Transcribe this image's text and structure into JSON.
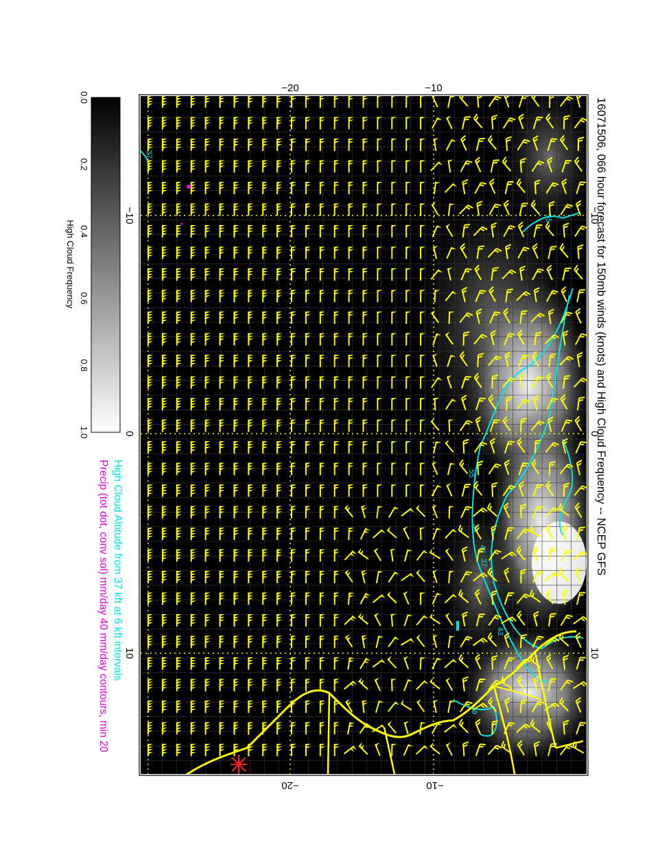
{
  "title": "16071506, 066 hour forecast for 150mb winds (knots) and High Cloud Frequency -- NCEP GFS",
  "subtitle_cloud": "High Cloud Altitude from 37 kft at 6 kft intervals",
  "subtitle_precip": "Precip (tot dot, conv sol) mm/day 40 mm/day contours, min 20",
  "colorbar": {
    "label": "High Cloud Frequency",
    "ticks": [
      "0.0",
      "0.2",
      "0.4",
      "0.6",
      "0.8",
      "1.0"
    ]
  },
  "axes": {
    "top": [
      "−20",
      "−10"
    ],
    "bottom": [
      "−20",
      "−10"
    ],
    "right": [
      "−10",
      "0",
      "10"
    ],
    "left": [
      "−10",
      "0",
      "10"
    ]
  },
  "contour_labels": [
    "37",
    "55",
    "55",
    "43",
    "43",
    "37",
    "43",
    "49"
  ],
  "colors": {
    "background": "#000000",
    "wind_barbs": "#ffff00",
    "contours": "#00e5e5",
    "precip": "#ff00ff",
    "marker": "#ff2020",
    "text_cyan": "#00e5e5",
    "text_magenta": "#e000e0"
  },
  "marker_symbol": "star"
}
